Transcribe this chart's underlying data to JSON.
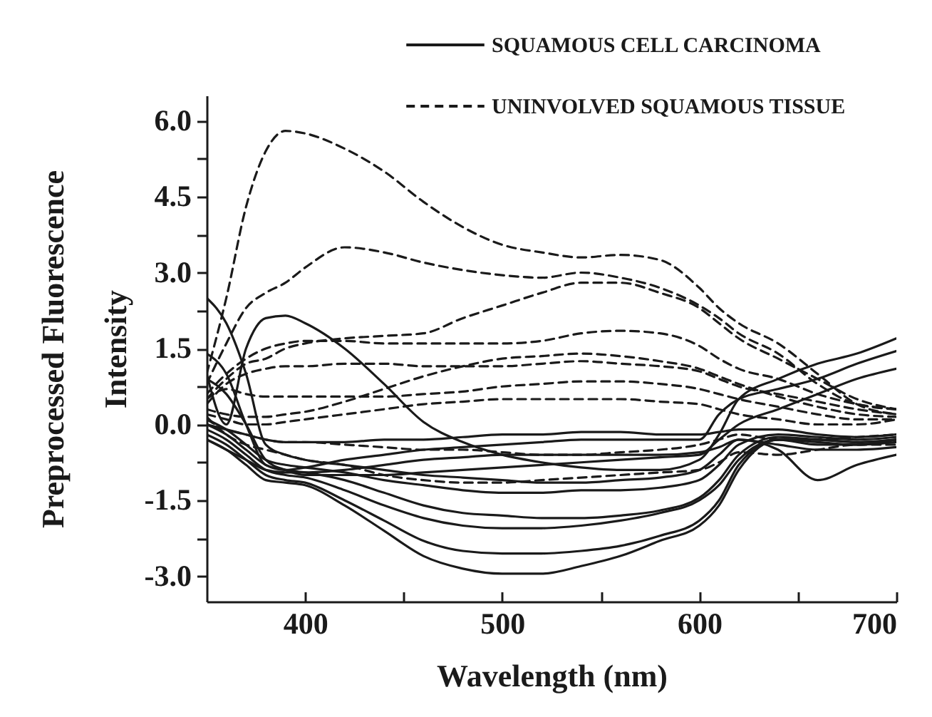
{
  "chart_data": {
    "type": "line",
    "xlabel": "Wavelength (nm)",
    "ylabel": "Preprocessed Fluorescence Intensity",
    "x": [
      350,
      360,
      370,
      380,
      390,
      400,
      420,
      440,
      460,
      480,
      500,
      520,
      540,
      560,
      580,
      600,
      610,
      620,
      640,
      660,
      680,
      700
    ],
    "xlim": [
      350,
      700
    ],
    "xticks": [
      {
        "value": 400,
        "label": "400"
      },
      {
        "value": 450,
        "label": null
      },
      {
        "value": 500,
        "label": "500"
      },
      {
        "value": 550,
        "label": null
      },
      {
        "value": 600,
        "label": "600"
      },
      {
        "value": 650,
        "label": null
      },
      {
        "value": 700,
        "label": "700"
      }
    ],
    "ylim": [
      -3.5,
      6.5
    ],
    "yticks": [
      {
        "value": -3,
        "label": "-3.0"
      },
      {
        "value": -2.25,
        "label": null
      },
      {
        "value": -1.5,
        "label": "-1.5"
      },
      {
        "value": -0.75,
        "label": null
      },
      {
        "value": 0,
        "label": "0.0"
      },
      {
        "value": 0.75,
        "label": null
      },
      {
        "value": 1.5,
        "label": "1.5"
      },
      {
        "value": 2.25,
        "label": null
      },
      {
        "value": 3,
        "label": "3.0"
      },
      {
        "value": 3.75,
        "label": null
      },
      {
        "value": 4.5,
        "label": "4.5"
      },
      {
        "value": 5.25,
        "label": null
      },
      {
        "value": 6,
        "label": "6.0"
      }
    ],
    "legend": "top right",
    "series": [
      {
        "name": "SQUAMOUS CELL CARCINOMA",
        "color": "#1a1a1a",
        "line_style": "solid",
        "values": [
          -0.3,
          -0.5,
          -0.8,
          -1.1,
          -1.15,
          -1.2,
          -1.6,
          -2.1,
          -2.6,
          -2.85,
          -2.95,
          -2.95,
          -2.8,
          -2.6,
          -2.3,
          -2.0,
          -1.6,
          -0.9,
          -0.3,
          -0.3,
          -0.35,
          -0.3
        ]
      },
      {
        "color": "#1a1a1a",
        "line_style": "solid",
        "values": [
          2.5,
          2.0,
          1.0,
          -0.4,
          -0.6,
          -0.7,
          -0.8,
          -0.9,
          -1.0,
          -1.05,
          -1.1,
          -1.15,
          -1.15,
          -1.1,
          -1.05,
          -0.9,
          -0.6,
          -0.3,
          -0.4,
          -0.5,
          -0.5,
          -0.45
        ]
      },
      {
        "color": "#1a1a1a",
        "line_style": "solid",
        "values": [
          1.0,
          0.0,
          1.5,
          2.1,
          2.15,
          2.0,
          1.5,
          0.8,
          0.05,
          -0.35,
          -0.6,
          -0.75,
          -0.85,
          -0.9,
          -0.9,
          -0.7,
          -0.2,
          0.5,
          0.9,
          1.2,
          1.4,
          1.7
        ]
      },
      {
        "color": "#1a1a1a",
        "line_style": "solid",
        "values": [
          1.4,
          1.0,
          0.0,
          -0.8,
          -0.9,
          -0.85,
          -0.7,
          -0.6,
          -0.5,
          -0.45,
          -0.4,
          -0.35,
          -0.3,
          -0.3,
          -0.3,
          -0.3,
          0.2,
          0.5,
          0.7,
          0.9,
          1.2,
          1.45
        ]
      },
      {
        "color": "#1a1a1a",
        "line_style": "solid",
        "values": [
          -0.2,
          -0.4,
          -0.7,
          -1.0,
          -1.1,
          -1.15,
          -1.5,
          -1.9,
          -2.3,
          -2.5,
          -2.55,
          -2.55,
          -2.5,
          -2.4,
          -2.2,
          -1.9,
          -1.5,
          -0.8,
          -0.3,
          -0.4,
          -0.4,
          -0.35
        ]
      },
      {
        "color": "#1a1a1a",
        "line_style": "solid",
        "values": [
          -0.1,
          -0.3,
          -0.6,
          -0.9,
          -1.0,
          -1.05,
          -1.3,
          -1.6,
          -1.85,
          -2.0,
          -2.05,
          -2.05,
          -2.0,
          -1.9,
          -1.75,
          -1.5,
          -1.2,
          -0.7,
          -0.3,
          -0.35,
          -0.4,
          -0.3
        ]
      },
      {
        "color": "#1a1a1a",
        "line_style": "solid",
        "values": [
          0.0,
          -0.2,
          -0.5,
          -0.8,
          -0.9,
          -0.95,
          -1.1,
          -1.35,
          -1.6,
          -1.75,
          -1.8,
          -1.85,
          -1.85,
          -1.8,
          -1.7,
          -1.45,
          -1.1,
          -0.6,
          -0.25,
          -0.3,
          -0.35,
          -0.3
        ]
      },
      {
        "color": "#1a1a1a",
        "line_style": "solid",
        "values": [
          0.1,
          -0.1,
          -0.4,
          -0.7,
          -0.8,
          -0.85,
          -0.95,
          -1.1,
          -1.2,
          -1.3,
          -1.35,
          -1.35,
          -1.3,
          -1.3,
          -1.25,
          -1.1,
          -0.8,
          -0.4,
          -0.2,
          -0.25,
          -0.3,
          -0.25
        ]
      },
      {
        "color": "#1a1a1a",
        "line_style": "solid",
        "values": [
          0.0,
          -0.1,
          -0.2,
          -0.3,
          -0.35,
          -0.35,
          -0.35,
          -0.3,
          -0.3,
          -0.25,
          -0.2,
          -0.2,
          -0.15,
          -0.15,
          -0.2,
          -0.2,
          -0.15,
          -0.1,
          -0.1,
          -0.2,
          -0.25,
          -0.2
        ]
      },
      {
        "color": "#1a1a1a",
        "line_style": "solid",
        "values": [
          -0.3,
          -0.5,
          -0.7,
          -0.9,
          -0.95,
          -0.95,
          -0.9,
          -0.8,
          -0.7,
          -0.65,
          -0.6,
          -0.6,
          -0.6,
          -0.6,
          -0.6,
          -0.55,
          -0.45,
          -0.3,
          -0.5,
          -1.1,
          -0.8,
          -0.6
        ]
      },
      {
        "color": "#1a1a1a",
        "line_style": "solid",
        "values": [
          0.9,
          0.6,
          0.0,
          -0.7,
          -0.9,
          -1.0,
          -1.0,
          -1.0,
          -0.95,
          -0.9,
          -0.85,
          -0.8,
          -0.75,
          -0.7,
          -0.65,
          -0.6,
          -0.3,
          0.0,
          0.3,
          0.6,
          0.9,
          1.1
        ]
      },
      {
        "name": "UNINVOLVED SQUAMOUS TISSUE",
        "color": "#1a1a1a",
        "line_style": "dashed",
        "values": [
          1.0,
          2.5,
          4.3,
          5.4,
          5.8,
          5.75,
          5.45,
          5.0,
          4.4,
          3.9,
          3.55,
          3.4,
          3.3,
          3.35,
          3.25,
          2.7,
          2.3,
          2.0,
          1.6,
          1.0,
          0.4,
          0.2
        ]
      },
      {
        "color": "#1a1a1a",
        "line_style": "dashed",
        "values": [
          0.8,
          1.6,
          2.3,
          2.6,
          2.8,
          3.1,
          3.5,
          3.4,
          3.2,
          3.05,
          2.95,
          2.9,
          3.0,
          2.9,
          2.7,
          2.35,
          2.1,
          1.8,
          1.4,
          0.8,
          0.4,
          0.3
        ]
      },
      {
        "color": "#1a1a1a",
        "line_style": "dashed",
        "values": [
          0.5,
          0.9,
          1.2,
          1.3,
          1.5,
          1.6,
          1.7,
          1.75,
          1.8,
          2.1,
          2.35,
          2.6,
          2.8,
          2.8,
          2.6,
          2.3,
          2.0,
          1.7,
          1.3,
          0.9,
          0.5,
          0.3
        ]
      },
      {
        "color": "#1a1a1a",
        "line_style": "dashed",
        "values": [
          0.6,
          1.0,
          1.3,
          1.5,
          1.6,
          1.65,
          1.65,
          1.6,
          1.6,
          1.6,
          1.6,
          1.65,
          1.8,
          1.85,
          1.8,
          1.55,
          1.3,
          1.1,
          0.9,
          0.6,
          0.4,
          0.3
        ]
      },
      {
        "color": "#1a1a1a",
        "line_style": "dashed",
        "values": [
          0.4,
          0.8,
          1.0,
          1.1,
          1.15,
          1.15,
          1.2,
          1.2,
          1.15,
          1.15,
          1.15,
          1.2,
          1.25,
          1.2,
          1.15,
          1.05,
          0.9,
          0.75,
          0.6,
          0.45,
          0.3,
          0.2
        ]
      },
      {
        "color": "#1a1a1a",
        "line_style": "dashed",
        "values": [
          0.3,
          0.2,
          0.15,
          0.15,
          0.2,
          0.25,
          0.45,
          0.7,
          0.95,
          1.15,
          1.3,
          1.35,
          1.4,
          1.35,
          1.25,
          1.1,
          0.95,
          0.8,
          0.55,
          0.35,
          0.2,
          0.15
        ]
      },
      {
        "color": "#1a1a1a",
        "line_style": "dashed",
        "values": [
          0.5,
          0.7,
          0.6,
          0.55,
          0.55,
          0.55,
          0.55,
          0.55,
          0.6,
          0.65,
          0.75,
          0.8,
          0.85,
          0.85,
          0.8,
          0.7,
          0.6,
          0.5,
          0.35,
          0.2,
          0.1,
          0.1
        ]
      },
      {
        "color": "#1a1a1a",
        "line_style": "dashed",
        "values": [
          0.2,
          0.1,
          0.0,
          0.0,
          0.05,
          0.1,
          0.2,
          0.3,
          0.4,
          0.45,
          0.5,
          0.5,
          0.5,
          0.5,
          0.45,
          0.4,
          0.3,
          0.2,
          0.1,
          0.0,
          0.0,
          0.1
        ]
      },
      {
        "color": "#1a1a1a",
        "line_style": "dashed",
        "values": [
          0.15,
          -0.2,
          -0.4,
          -0.5,
          -0.6,
          -0.7,
          -0.8,
          -1.0,
          -1.1,
          -1.15,
          -1.15,
          -1.1,
          -1.05,
          -1.0,
          -0.95,
          -0.9,
          -0.75,
          -0.55,
          -0.6,
          -0.5,
          -0.4,
          -0.4
        ]
      },
      {
        "color": "#1a1a1a",
        "line_style": "dashed",
        "values": [
          0.1,
          -0.1,
          -0.2,
          -0.3,
          -0.35,
          -0.35,
          -0.4,
          -0.45,
          -0.5,
          -0.5,
          -0.55,
          -0.6,
          -0.6,
          -0.55,
          -0.5,
          -0.4,
          -0.3,
          -0.2,
          -0.3,
          -0.3,
          -0.25,
          -0.2
        ]
      }
    ]
  }
}
